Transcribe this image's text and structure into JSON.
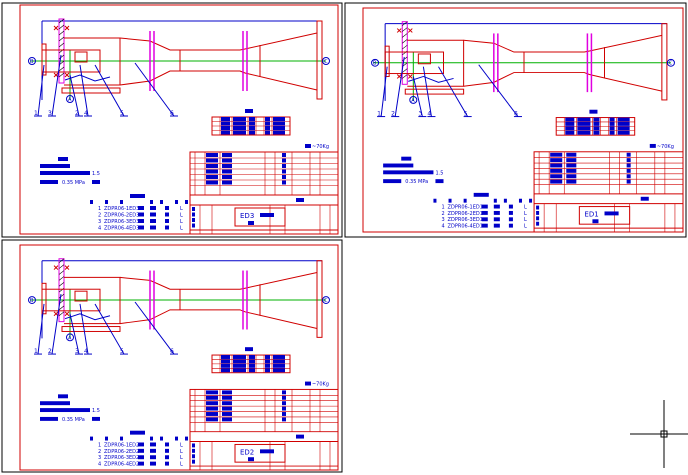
{
  "colors": {
    "frame": "#000000",
    "border": "#d00000",
    "outline": "#d00000",
    "annotation": "#0000c8",
    "centerline": "#00b000",
    "flange": "#e000e0",
    "crosshair": "#000000"
  },
  "sheets": [
    {
      "code": "ED3",
      "balloons": [
        "1",
        "3",
        "2",
        "4",
        "5",
        "6"
      ],
      "end_markers": [
        "B",
        "C",
        "A"
      ],
      "weight": "~70Kg",
      "notes": {
        "line2_value": "1.5",
        "line3_value": "0.35 MPa"
      },
      "parts": [
        {
          "no": "1",
          "code": "ZDPR06-1ED3",
          "qty": "L"
        },
        {
          "no": "2",
          "code": "ZDPR06-2ED3",
          "qty": "L"
        },
        {
          "no": "3",
          "code": "ZDPR06-3ED3",
          "qty": "L"
        },
        {
          "no": "4",
          "code": "ZDPR06-4ED3",
          "qty": "L"
        }
      ]
    },
    {
      "code": "ED1",
      "balloons": [
        "1",
        "2",
        "3",
        "4",
        "5",
        "6"
      ],
      "end_markers": [
        "B",
        "C",
        "A"
      ],
      "weight": "~70Kg",
      "notes": {
        "line2_value": "1.5",
        "line3_value": "0.35 MPa"
      },
      "parts": [
        {
          "no": "1",
          "code": "ZDPR06-1ED1",
          "qty": "L"
        },
        {
          "no": "2",
          "code": "ZDPR06-2ED1",
          "qty": "L"
        },
        {
          "no": "3",
          "code": "ZDPR06-3ED1",
          "qty": "L"
        },
        {
          "no": "4",
          "code": "ZDPR06-4ED1",
          "qty": "L"
        }
      ]
    },
    {
      "code": "ED2",
      "balloons": [
        "1",
        "2",
        "3",
        "4",
        "5",
        "6"
      ],
      "end_markers": [
        "B",
        "C",
        "A"
      ],
      "weight": "~70Kg",
      "notes": {
        "line2_value": "1.5",
        "line3_value": "0.35 MPa"
      },
      "parts": [
        {
          "no": "1",
          "code": "ZDPR06-1ED2",
          "qty": "L"
        },
        {
          "no": "2",
          "code": "ZDPR06-2ED2",
          "qty": "L"
        },
        {
          "no": "3",
          "code": "ZDPR06-3ED2",
          "qty": "L"
        },
        {
          "no": "4",
          "code": "ZDPR06-4ED2",
          "qty": "L"
        }
      ]
    }
  ],
  "cursor": {
    "icon": "crosshair-cursor-icon"
  }
}
